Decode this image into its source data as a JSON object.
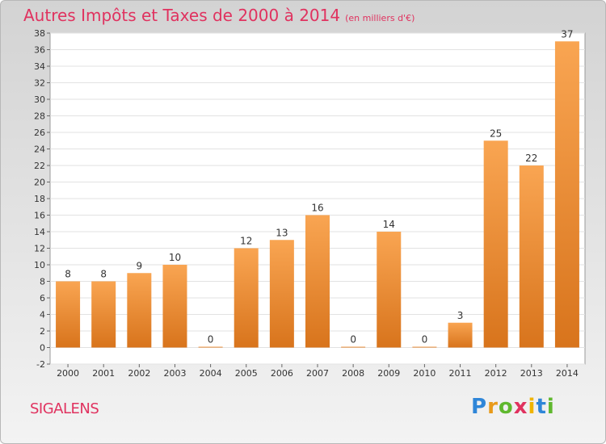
{
  "title": "Autres Impôts et Taxes de 2000 à 2014",
  "subtitle": "(en milliers d'€)",
  "commune": "SIGALENS",
  "logo_text": "Proxiti",
  "colors": {
    "title": "#e0325f",
    "bar_light": "#f9a552",
    "bar_dark": "#d8741c"
  },
  "chart_data": {
    "type": "bar",
    "title": "Autres Impôts et Taxes de 2000 à 2014",
    "subtitle": "(en milliers d'€)",
    "categories": [
      "2000",
      "2001",
      "2002",
      "2003",
      "2004",
      "2005",
      "2006",
      "2007",
      "2008",
      "2009",
      "2010",
      "2011",
      "2012",
      "2013",
      "2014"
    ],
    "values": [
      8,
      8,
      9,
      10,
      0,
      12,
      13,
      16,
      0,
      14,
      0,
      3,
      25,
      22,
      37
    ],
    "ylim": [
      -2,
      38
    ],
    "yticks": [
      -2,
      0,
      2,
      4,
      6,
      8,
      10,
      12,
      14,
      16,
      18,
      20,
      22,
      24,
      26,
      28,
      30,
      32,
      34,
      36,
      38
    ],
    "grid": true,
    "xlabel": "",
    "ylabel": ""
  }
}
